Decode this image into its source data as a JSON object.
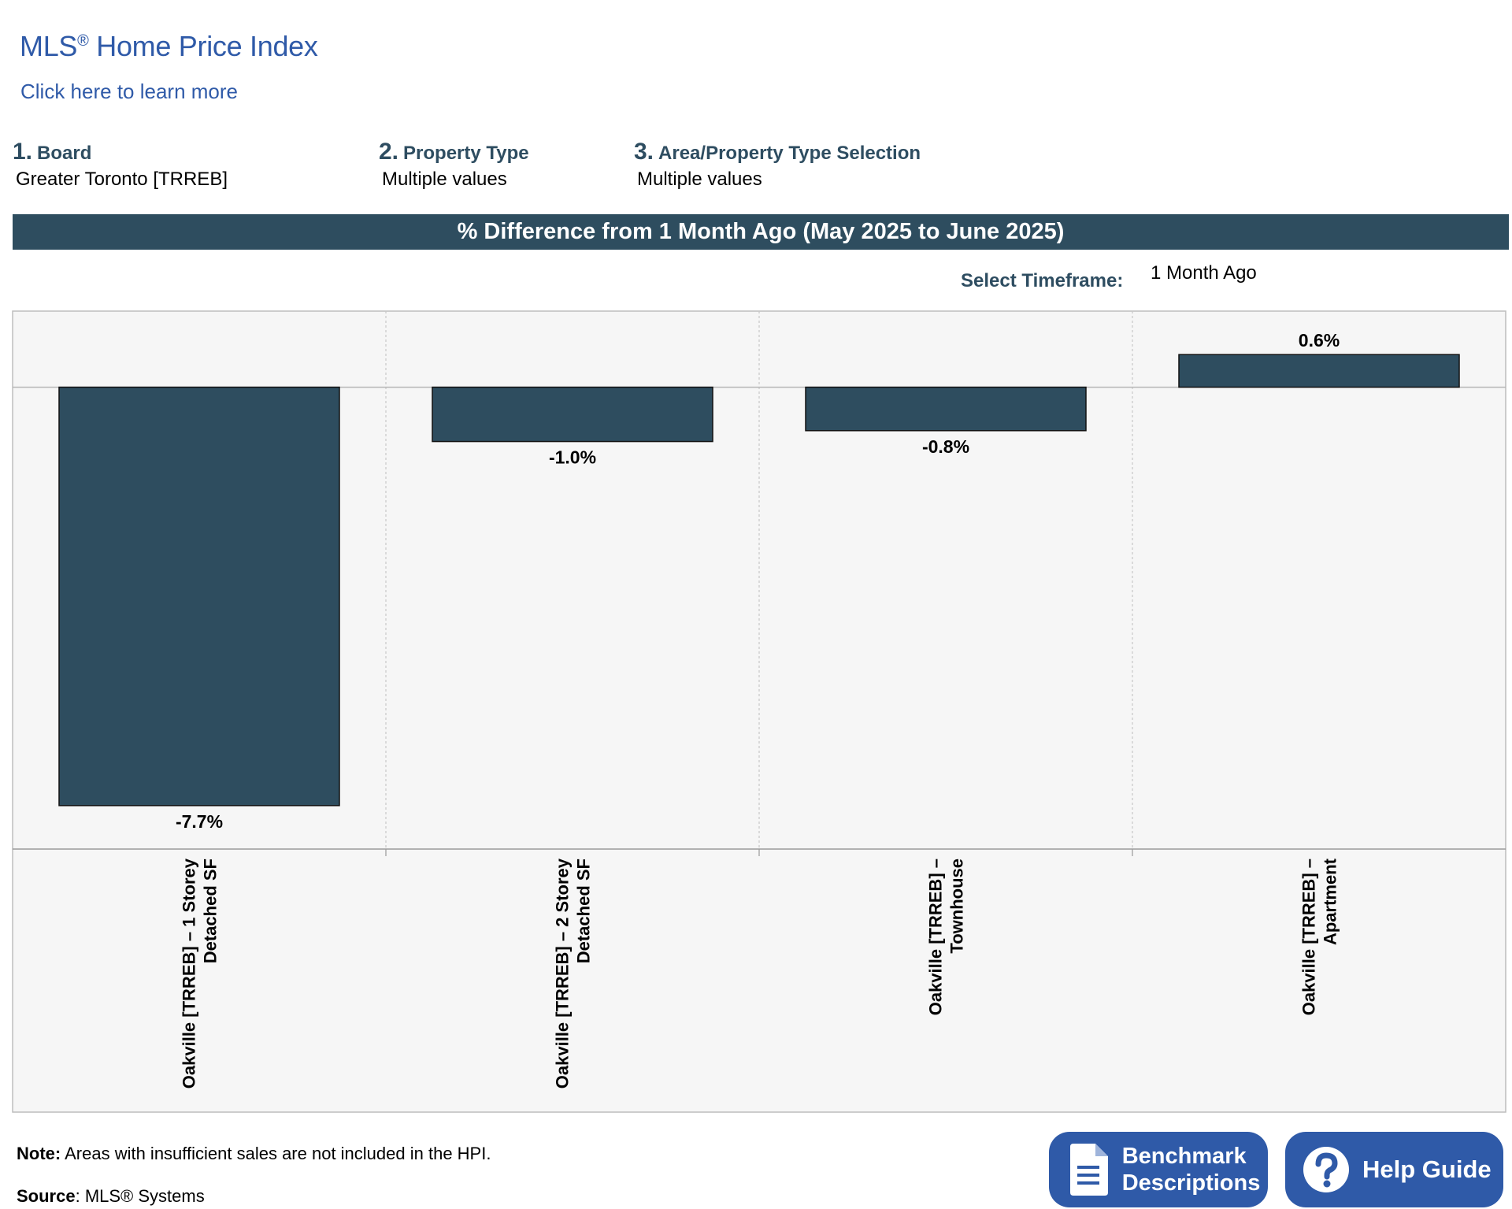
{
  "header": {
    "title": "MLS",
    "title_reg": "®",
    "title_rest": " Home Price Index",
    "learn_more": "Click here to learn more"
  },
  "filters": [
    {
      "num": "1.",
      "label": "Board",
      "value": "Greater Toronto [TRREB]"
    },
    {
      "num": "2.",
      "label": "Property Type",
      "value": "Multiple values"
    },
    {
      "num": "3.",
      "label": "Area/Property Type Selection",
      "value": "Multiple values"
    }
  ],
  "timeframe": {
    "label": "Select Timeframe:",
    "value": "1 Month Ago"
  },
  "footer": {
    "note_label": "Note:",
    "note_text": " Areas with insufficient sales are not included in the HPI.",
    "source_label": "Source",
    "source_text": ": MLS® Systems"
  },
  "buttons": {
    "benchmark": [
      "Benchmark",
      "Descriptions"
    ],
    "help": "Help Guide"
  },
  "colors": {
    "bar": "#2e4d5f",
    "accent_blue": "#2f5aa8",
    "plot_bg": "#f6f6f6"
  },
  "chart_data": {
    "type": "bar",
    "title": "% Difference from 1 Month Ago (May 2025 to June 2025)",
    "categories": [
      [
        "Oakville [TRREB] – 1 Storey",
        "Detached SF"
      ],
      [
        "Oakville [TRREB] – 2 Storey",
        "Detached SF"
      ],
      [
        "Oakville [TRREB] –",
        "Townhouse"
      ],
      [
        "Oakville [TRREB] –",
        "Apartment"
      ]
    ],
    "values": [
      -7.7,
      -1.0,
      -0.8,
      0.6
    ],
    "data_labels": [
      "-7.7%",
      "-1.0%",
      "-0.8%",
      "0.6%"
    ],
    "ylim": [
      -8.5,
      1.4
    ],
    "grid": true,
    "xlabel": "",
    "ylabel": ""
  }
}
